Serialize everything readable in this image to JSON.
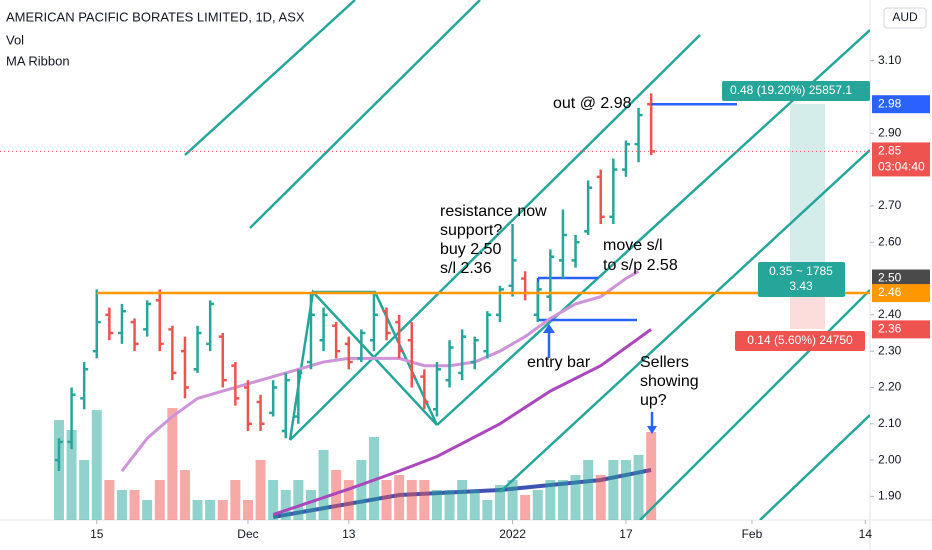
{
  "chart_data": {
    "type": "ohlc",
    "title": "AMERICAN PACIFIC BORATES LIMITED, 1D, ASX",
    "indicators": [
      "Vol",
      "MA Ribbon"
    ],
    "currency": "AUD",
    "up_color": "#26a69a",
    "down_color": "#ef5350",
    "open": [
      2.0,
      2.05,
      2.17,
      2.3,
      2.4,
      2.35,
      2.38,
      2.36,
      2.44,
      2.36,
      2.3,
      2.25,
      2.32,
      2.34,
      2.26,
      2.2,
      2.16,
      2.13,
      2.08,
      2.12,
      2.27,
      2.33,
      2.37,
      2.32,
      2.28,
      2.33,
      2.41,
      2.38,
      2.33,
      2.23,
      2.14,
      2.22,
      2.24,
      2.27,
      2.3,
      2.4,
      2.48,
      2.5,
      2.4,
      2.45,
      2.55,
      2.55,
      2.63,
      2.78,
      2.67,
      2.8,
      2.87,
      2.98
    ],
    "high": [
      2.06,
      2.2,
      2.27,
      2.47,
      2.42,
      2.43,
      2.39,
      2.44,
      2.47,
      2.37,
      2.34,
      2.37,
      2.44,
      2.35,
      2.27,
      2.22,
      2.18,
      2.22,
      2.24,
      2.25,
      2.46,
      2.42,
      2.38,
      2.34,
      2.36,
      2.46,
      2.42,
      2.4,
      2.38,
      2.25,
      2.27,
      2.33,
      2.36,
      2.34,
      2.41,
      2.48,
      2.65,
      2.52,
      2.49,
      2.58,
      2.69,
      2.62,
      2.77,
      2.8,
      2.83,
      2.88,
      2.97,
      3.01
    ],
    "low": [
      1.97,
      2.03,
      2.14,
      2.28,
      2.33,
      2.32,
      2.3,
      2.34,
      2.3,
      2.22,
      2.17,
      2.24,
      2.3,
      2.2,
      2.15,
      2.08,
      2.08,
      2.12,
      2.06,
      2.1,
      2.25,
      2.3,
      2.28,
      2.25,
      2.27,
      2.3,
      2.33,
      2.28,
      2.2,
      2.14,
      2.12,
      2.2,
      2.22,
      2.25,
      2.28,
      2.38,
      2.45,
      2.44,
      2.38,
      2.41,
      2.5,
      2.53,
      2.62,
      2.65,
      2.65,
      2.78,
      2.82,
      2.84
    ],
    "close": [
      2.05,
      2.18,
      2.25,
      2.38,
      2.35,
      2.41,
      2.32,
      2.43,
      2.32,
      2.24,
      2.2,
      2.35,
      2.43,
      2.22,
      2.17,
      2.1,
      2.1,
      2.2,
      2.22,
      2.24,
      2.4,
      2.4,
      2.3,
      2.27,
      2.35,
      2.4,
      2.35,
      2.3,
      2.23,
      2.16,
      2.25,
      2.31,
      2.34,
      2.33,
      2.4,
      2.47,
      2.55,
      2.46,
      2.47,
      2.56,
      2.62,
      2.6,
      2.75,
      2.67,
      2.8,
      2.87,
      2.95,
      2.85
    ],
    "volume": [
      100,
      90,
      60,
      110,
      40,
      30,
      30,
      20,
      40,
      112,
      50,
      20,
      20,
      20,
      40,
      20,
      60,
      40,
      30,
      40,
      30,
      70,
      50,
      40,
      60,
      83,
      40,
      45,
      40,
      40,
      30,
      30,
      40,
      30,
      20,
      35,
      40,
      25,
      30,
      40,
      40,
      45,
      60,
      45,
      60,
      60,
      65,
      88
    ],
    "moving_averages": [
      {
        "color": "#ce93d8",
        "x": [
          5,
          7,
          9,
          11,
          13,
          15,
          17,
          19,
          21,
          23,
          25,
          27,
          29,
          31,
          33,
          35,
          37,
          39,
          41,
          43,
          45,
          46
        ],
        "values": [
          1.97,
          2.06,
          2.12,
          2.17,
          2.19,
          2.21,
          2.23,
          2.25,
          2.27,
          2.28,
          2.28,
          2.28,
          2.26,
          2.26,
          2.27,
          2.3,
          2.34,
          2.39,
          2.43,
          2.45,
          2.5,
          2.52
        ]
      },
      {
        "color": "#ab47bc",
        "x": [
          17,
          23,
          27,
          30,
          35,
          39,
          43,
          47
        ],
        "values": [
          1.85,
          1.92,
          1.97,
          2.01,
          2.1,
          2.19,
          2.26,
          2.36
        ]
      },
      {
        "color": "#3f51b5",
        "axis": "volume",
        "x": [
          17,
          27,
          35,
          43,
          47
        ],
        "values": [
          3,
          25,
          30,
          40,
          50
        ]
      }
    ],
    "xlim": [
      -4.68,
      64.37
    ],
    "ylim": [
      1.835,
      3.267
    ],
    "xticks": [
      {
        "value": 3,
        "label": "15"
      },
      {
        "value": 15,
        "label": "Dec"
      },
      {
        "value": 23,
        "label": "13"
      },
      {
        "value": 36,
        "label": "2022"
      },
      {
        "value": 45,
        "label": "17"
      },
      {
        "value": 55,
        "label": "Feb"
      },
      {
        "value": 64,
        "label": "14"
      }
    ],
    "yticks": [
      {
        "value": 1.9,
        "label": "1.90"
      },
      {
        "value": 2.0,
        "label": "2.00"
      },
      {
        "value": 2.1,
        "label": "2.10"
      },
      {
        "value": 2.2,
        "label": "2.20"
      },
      {
        "value": 2.3,
        "label": "2.30"
      },
      {
        "value": 2.4,
        "label": "2.40"
      },
      {
        "value": 2.6,
        "label": "2.60"
      },
      {
        "value": 2.7,
        "label": "2.70"
      },
      {
        "value": 2.9,
        "label": "2.90"
      },
      {
        "value": 3.1,
        "label": "3.10"
      }
    ],
    "price_tags": [
      {
        "value": 2.98,
        "label": "2.98",
        "color": "#2962ff"
      },
      {
        "value": 2.85,
        "label": "2.85",
        "color": "#ef5350"
      },
      {
        "value": 2.5,
        "label": "2.50",
        "color": "#4a4a4a"
      },
      {
        "value": 2.46,
        "label": "2.46",
        "color": "#ff9800"
      },
      {
        "value": 2.36,
        "label": "2.36",
        "color": "#ef5350"
      }
    ],
    "countdown": "03:04:40",
    "position_labels": {
      "target": "0.48 (19.20%) 25857.1",
      "center": [
        "0.35 ~ 1785",
        "3.43"
      ],
      "stop": "0.14 (5.60%) 24750"
    },
    "annotations": {
      "exit": "out @ 2.98",
      "setup": [
        "resistance now",
        "support?",
        "buy 2.50",
        "s/l 2.36"
      ],
      "stop_move": [
        "move s/l",
        "to s/p 2.58"
      ],
      "entry": "entry bar",
      "sellers": [
        "Sellers",
        "showing",
        "up?"
      ]
    }
  }
}
